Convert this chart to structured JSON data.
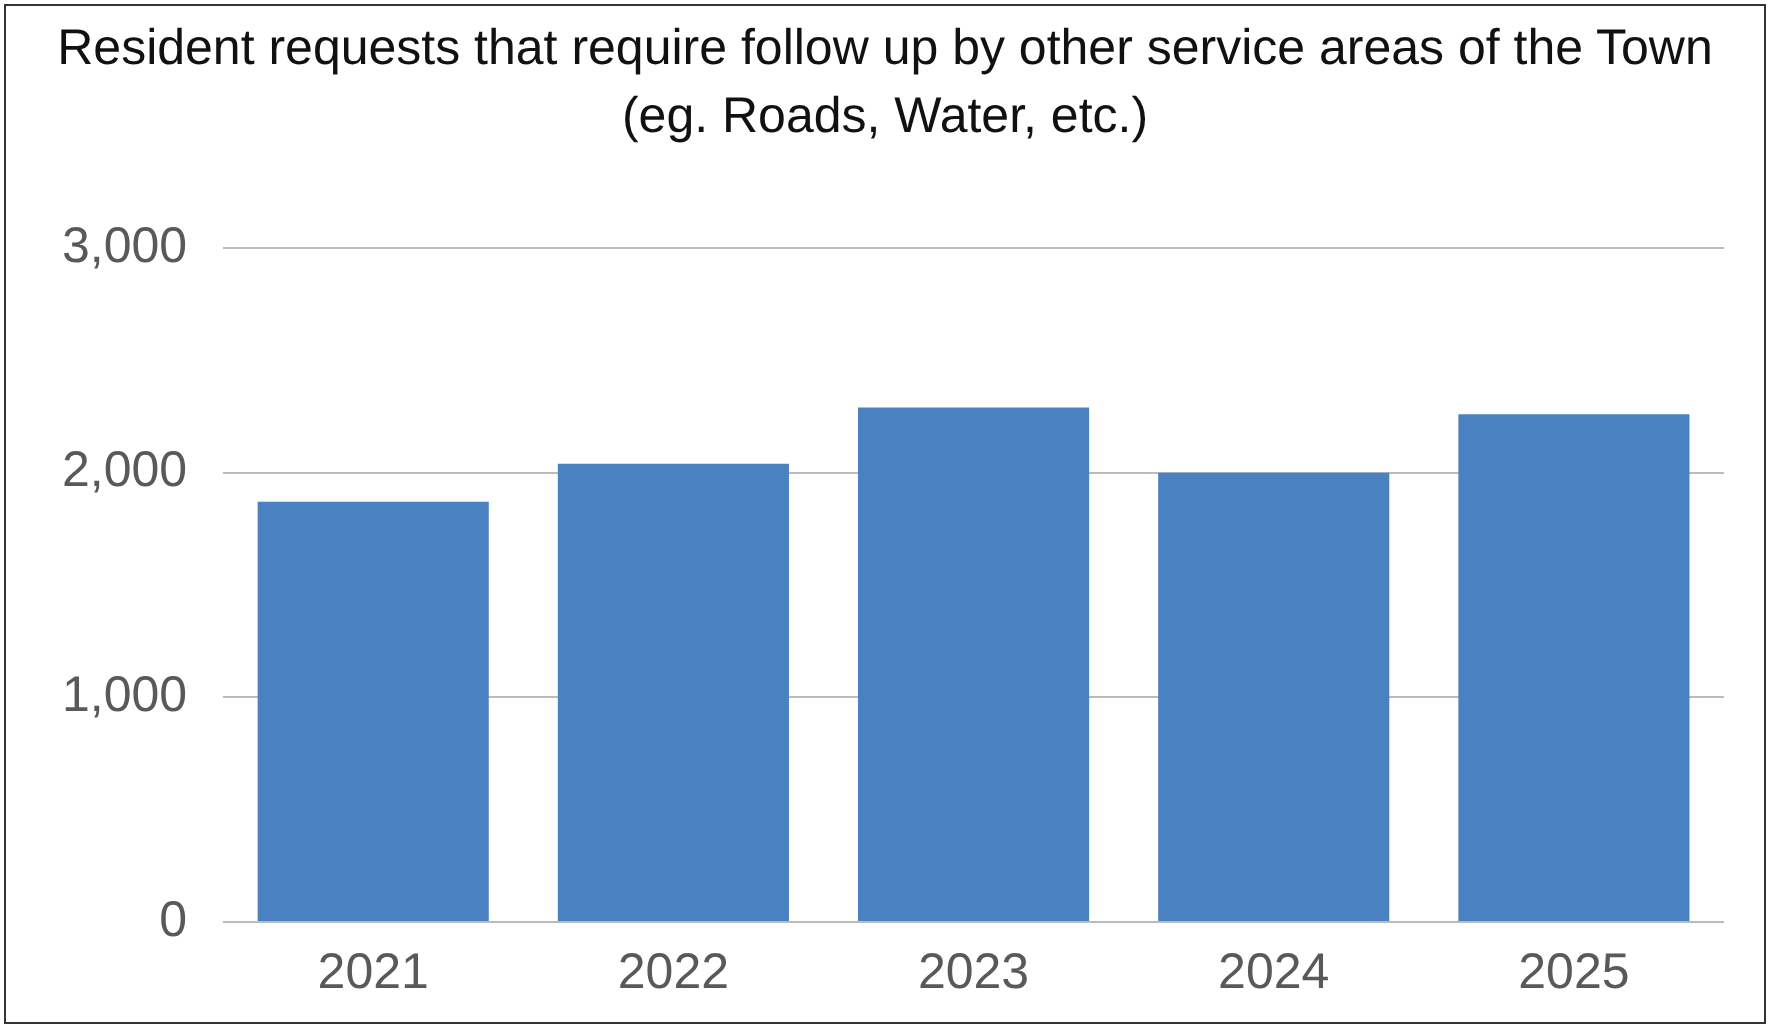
{
  "chart_data": {
    "type": "bar",
    "title": "Resident requests that require follow up by other service areas of the Town (eg. Roads, Water, etc.)",
    "categories": [
      "2021",
      "2022",
      "2023",
      "2024",
      "2025"
    ],
    "values": [
      1870,
      2040,
      2290,
      2000,
      2260
    ],
    "color": "#4a81c1",
    "ylim": [
      0,
      3000
    ],
    "yticks": [
      {
        "value": 0,
        "label": "0"
      },
      {
        "value": 1000,
        "label": "1,000"
      },
      {
        "value": 2000,
        "label": "2,000"
      },
      {
        "value": 3000,
        "label": "3,000"
      }
    ],
    "grid": "y",
    "legend": false
  }
}
